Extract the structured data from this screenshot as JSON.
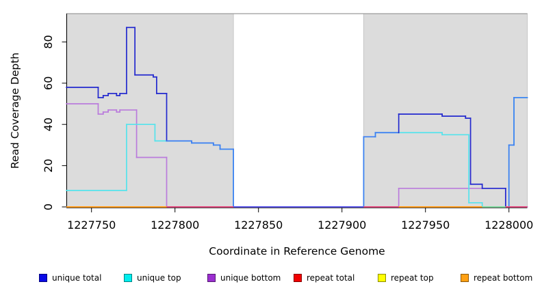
{
  "figure": {
    "y_axis": {
      "label": "Read Coverage Depth"
    },
    "x_axis": {
      "label": "Coordinate in Reference Genome"
    }
  },
  "legend": {
    "items": [
      {
        "label": "unique total",
        "color": "#0A0AE6"
      },
      {
        "label": "unique top",
        "color": "#00EEEE"
      },
      {
        "label": "unique bottom",
        "color": "#9B2FD0"
      },
      {
        "label": "repeat total",
        "color": "#F20000"
      },
      {
        "label": "repeat top",
        "color": "#FFFF00"
      },
      {
        "label": "repeat bottom",
        "color": "#FFA013"
      }
    ]
  },
  "chart_data": {
    "type": "line",
    "title": "",
    "xlabel": "Coordinate in Reference Genome",
    "ylabel": "Read Coverage Depth",
    "xlim": [
      1227735,
      1228011
    ],
    "ylim": [
      0,
      88
    ],
    "x_ticks": [
      1227750,
      1227800,
      1227850,
      1227900,
      1227950,
      1228000
    ],
    "y_ticks": [
      0,
      20,
      40,
      60,
      80
    ],
    "grid": false,
    "legend_position": "bottom",
    "shaded_regions": [
      {
        "from": 1227735,
        "to": 1227835,
        "meaning": "repeat region shading"
      },
      {
        "from": 1227913,
        "to": 1228011,
        "meaning": "repeat region shading"
      }
    ],
    "series": [
      {
        "name": "unique total",
        "line_color": "#2228CE",
        "overlap_color": "#3E7DF2",
        "steps": [
          [
            1227735,
            58
          ],
          [
            1227754,
            53
          ],
          [
            1227757,
            54
          ],
          [
            1227760,
            55
          ],
          [
            1227765,
            54
          ],
          [
            1227767,
            55
          ],
          [
            1227771,
            87
          ],
          [
            1227776,
            64
          ],
          [
            1227787,
            63
          ],
          [
            1227789,
            55
          ],
          [
            1227795,
            32
          ],
          [
            1227810,
            31
          ],
          [
            1227823,
            30
          ],
          [
            1227827,
            28
          ],
          [
            1227835,
            0
          ],
          [
            1227913,
            34
          ],
          [
            1227920,
            36
          ],
          [
            1227934,
            45
          ],
          [
            1227960,
            44
          ],
          [
            1227974,
            43
          ],
          [
            1227977,
            11
          ],
          [
            1227984,
            9
          ],
          [
            1227998,
            0
          ],
          [
            1228000,
            30
          ],
          [
            1228003,
            53
          ]
        ]
      },
      {
        "name": "unique top",
        "line_color": "#53E3EC",
        "steps": [
          [
            1227735,
            8
          ],
          [
            1227771,
            40
          ],
          [
            1227788,
            32
          ],
          [
            1227810,
            31
          ],
          [
            1227823,
            30
          ],
          [
            1227827,
            28
          ],
          [
            1227835,
            0
          ],
          [
            1227913,
            34
          ],
          [
            1227920,
            36
          ],
          [
            1227960,
            35
          ],
          [
            1227976,
            2
          ],
          [
            1227984,
            0
          ],
          [
            1228000,
            30
          ],
          [
            1228003,
            53
          ]
        ]
      },
      {
        "name": "unique bottom",
        "line_color": "#BA7BDC",
        "steps": [
          [
            1227735,
            50
          ],
          [
            1227754,
            45
          ],
          [
            1227757,
            46
          ],
          [
            1227760,
            47
          ],
          [
            1227765,
            46
          ],
          [
            1227767,
            47
          ],
          [
            1227777,
            24
          ],
          [
            1227795,
            0
          ],
          [
            1227934,
            9
          ],
          [
            1227998,
            0
          ]
        ]
      },
      {
        "name": "repeat total",
        "line_color": "#E0487E",
        "steps": [
          [
            1227735,
            0
          ]
        ]
      },
      {
        "name": "repeat top",
        "line_color": "#FFFF00",
        "steps": [
          [
            1227735,
            0
          ]
        ]
      },
      {
        "name": "repeat bottom",
        "line_color": "#FF9B1A",
        "steps": [
          [
            1227735,
            0
          ]
        ]
      }
    ],
    "baseline_segments": [
      {
        "from": 1227735,
        "to": 1227795,
        "color": "#FF9B1A",
        "visible_series": "repeat bottom"
      },
      {
        "from": 1227795,
        "to": 1227835,
        "color": "#E0487E",
        "visible_series": "repeat total"
      },
      {
        "from": 1227835,
        "to": 1227913,
        "color": "#5A55E6",
        "visible_series": "unique lines at zero"
      },
      {
        "from": 1227913,
        "to": 1227934,
        "color": "#E0487E",
        "visible_series": "repeat total"
      },
      {
        "from": 1227934,
        "to": 1227984,
        "color": "#FF9B1A",
        "visible_series": "repeat bottom"
      },
      {
        "from": 1227984,
        "to": 1227998,
        "color": "#7FD89E",
        "visible_series": "unique top over repeat bottom"
      },
      {
        "from": 1227998,
        "to": 1228011,
        "color": "#E0487E",
        "visible_series": "repeat total"
      }
    ],
    "frame": {
      "box_fill": "#DCDCDC",
      "box_border": "#C6C6C6",
      "top_line": "#9A9A9A"
    }
  }
}
